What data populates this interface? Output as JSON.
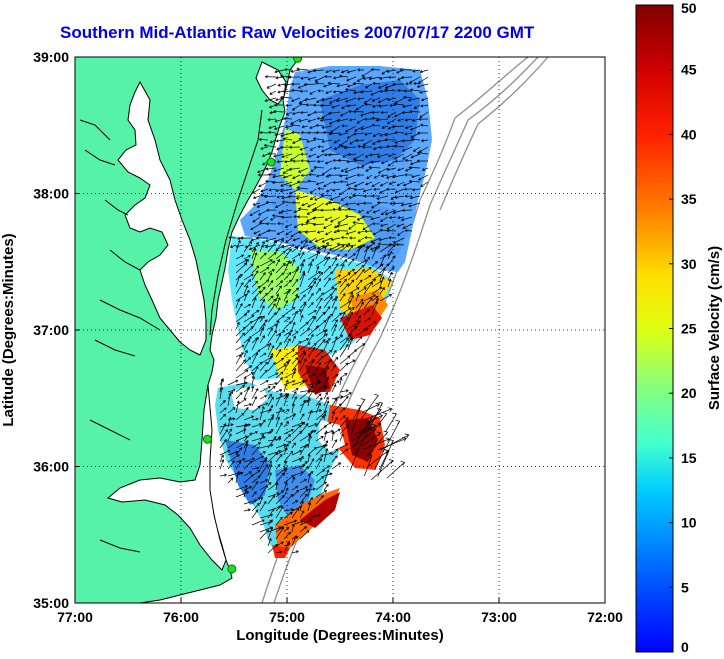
{
  "title": "Southern Mid-Atlantic Raw Velocities 2007/07/17 2200 GMT",
  "x_axis": {
    "label": "Longitude (Degrees:Minutes)",
    "ticks": [
      {
        "value": -77,
        "label": "77:00"
      },
      {
        "value": -76,
        "label": "76:00"
      },
      {
        "value": -75,
        "label": "75:00"
      },
      {
        "value": -74,
        "label": "74:00"
      },
      {
        "value": -73,
        "label": "73:00"
      },
      {
        "value": -72,
        "label": "72:00"
      }
    ],
    "range": [
      -77,
      -72
    ]
  },
  "y_axis": {
    "label": "Latitude (Degrees:Minutes)",
    "ticks": [
      {
        "value": 35,
        "label": "35:00"
      },
      {
        "value": 36,
        "label": "36:00"
      },
      {
        "value": 37,
        "label": "37:00"
      },
      {
        "value": 38,
        "label": "38:00"
      },
      {
        "value": 39,
        "label": "39:00"
      }
    ],
    "range": [
      35,
      39
    ]
  },
  "colorbar": {
    "label": "Surface Velocity (cm/s)",
    "range": [
      0,
      50
    ],
    "ticks": [
      "0",
      "5",
      "10",
      "15",
      "20",
      "25",
      "30",
      "35",
      "40",
      "45",
      "50"
    ]
  },
  "colors": {
    "land": "#55f2a8",
    "coast": "#000000",
    "bathymetry": "#8f8f8f",
    "title": "#0000ee",
    "station_marker": "#22dd22"
  },
  "grid": "dotted",
  "stations": [
    {
      "lon": -74.9,
      "lat": 38.99
    },
    {
      "lon": -75.15,
      "lat": 38.23
    },
    {
      "lon": -75.75,
      "lat": 36.2
    },
    {
      "lon": -75.52,
      "lat": 35.25
    }
  ]
}
